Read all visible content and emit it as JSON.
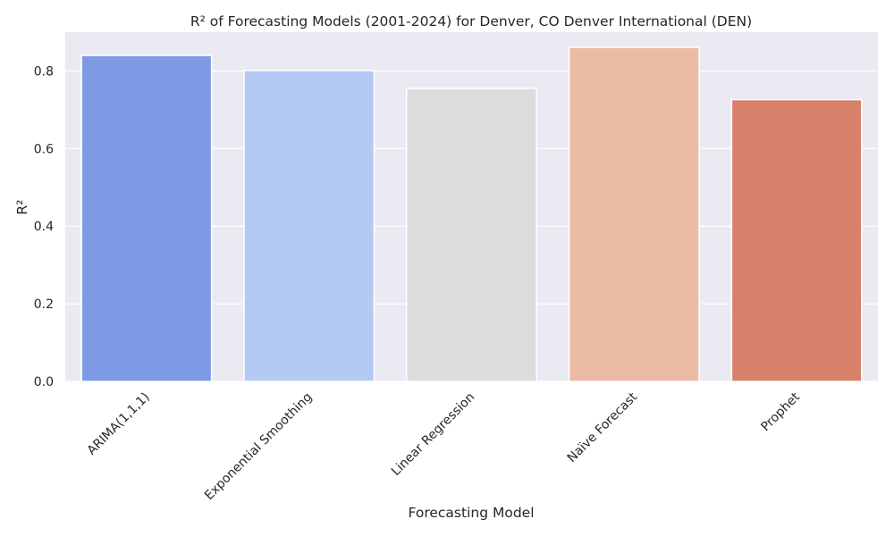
{
  "chart_data": {
    "type": "bar",
    "title": "R² of Forecasting Models (2001-2024) for Denver, CO Denver International (DEN)",
    "xlabel": "Forecasting Model",
    "ylabel": "R²",
    "categories": [
      "ARIMA(1,1,1)",
      "Exponential Smoothing",
      "Linear Regression",
      "Naïve Forecast",
      "Prophet"
    ],
    "values": [
      0.84,
      0.801,
      0.755,
      0.861,
      0.726
    ],
    "colors": [
      "#7f9ae4",
      "#b4c9f3",
      "#dcdcdc",
      "#ecbba5",
      "#d7806a"
    ],
    "ylim": [
      0,
      0.9
    ],
    "yticks": [
      "0.0",
      "0.2",
      "0.4",
      "0.6",
      "0.8"
    ],
    "grid": true,
    "background": "#eaeaf2"
  }
}
